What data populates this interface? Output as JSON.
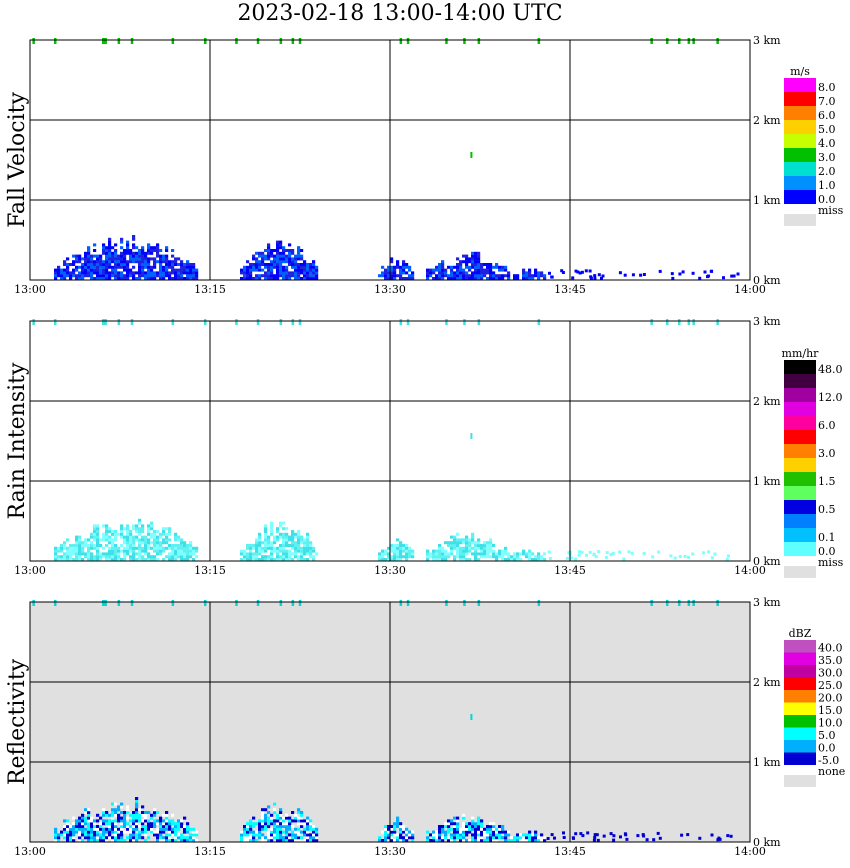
{
  "header": {
    "title": "2023-02-18   13:00-14:00 UTC"
  },
  "chart_data": [
    {
      "type": "heatmap",
      "title": "Fall Velocity",
      "x_ticks": [
        "13:00",
        "13:15",
        "13:30",
        "13:45",
        "14:00"
      ],
      "y_ticks": [
        "0 km",
        "1 km",
        "2 km",
        "3 km"
      ],
      "xlim": [
        0,
        60
      ],
      "ylim_km": [
        0,
        3.1
      ],
      "background": "#ffffff",
      "colorbar": {
        "unit": "m/s",
        "labels": [
          "8.0",
          "7.0",
          "6.0",
          "5.0",
          "4.0",
          "3.0",
          "2.0",
          "1.0",
          "0.0"
        ],
        "colors": [
          "#ff00ff",
          "#ff0000",
          "#ff8000",
          "#ffd000",
          "#c8ff00",
          "#00c000",
          "#00e0d0",
          "#0090ff",
          "#0000ff"
        ],
        "miss_label": "miss",
        "miss_color": "#e0e0e0"
      },
      "echo_colors": [
        "#0000ff",
        "#2020e0",
        "#0060ff"
      ],
      "top_colors": [
        "#00c000",
        "#40d040"
      ]
    },
    {
      "type": "heatmap",
      "title": "Rain Intensity",
      "x_ticks": [
        "13:00",
        "13:15",
        "13:30",
        "13:45",
        "14:00"
      ],
      "y_ticks": [
        "0 km",
        "1 km",
        "2 km",
        "3 km"
      ],
      "xlim": [
        0,
        60
      ],
      "ylim_km": [
        0,
        3.1
      ],
      "background": "#ffffff",
      "colorbar": {
        "unit": "mm/hr",
        "labels": [
          "48.0",
          "12.0",
          "6.0",
          "3.0",
          "1.5",
          "0.5",
          "0.1",
          "0.0"
        ],
        "label_positions": [
          0,
          2,
          4,
          6,
          8,
          10,
          12,
          13
        ],
        "colors": [
          "#000000",
          "#400040",
          "#a000a0",
          "#e000e0",
          "#ff00a0",
          "#ff0000",
          "#ff8000",
          "#ffd000",
          "#20c000",
          "#60ff60",
          "#0000e0",
          "#0080ff",
          "#00c0ff",
          "#60ffff"
        ],
        "miss_label": "miss",
        "miss_color": "#e0e0e0"
      },
      "echo_colors": [
        "#7fffff",
        "#60f0f0",
        "#40e0e8"
      ],
      "top_colors": [
        "#40e0e0",
        "#60f0f0"
      ]
    },
    {
      "type": "heatmap",
      "title": "Reflectivity",
      "x_ticks": [
        "13:00",
        "13:15",
        "13:30",
        "13:45",
        "14:00"
      ],
      "y_ticks": [
        "0 km",
        "1 km",
        "2 km",
        "3 km"
      ],
      "xlim": [
        0,
        60
      ],
      "ylim_km": [
        0,
        3.1
      ],
      "background": "#e0e0e0",
      "colorbar": {
        "unit": "dBZ",
        "labels": [
          "40.0",
          "35.0",
          "30.0",
          "25.0",
          "20.0",
          "15.0",
          "10.0",
          "5.0",
          "0.0",
          "-5.0"
        ],
        "colors": [
          "#c050c0",
          "#e000e0",
          "#c000a0",
          "#ff0000",
          "#ff8000",
          "#ffff00",
          "#00c000",
          "#00ffff",
          "#00b0ff",
          "#0000d0"
        ],
        "miss_label": "none",
        "miss_color": "#e0e0e0"
      },
      "echo_colors": [
        "#0000d0",
        "#ffffff",
        "#00b0ff",
        "#00ffff"
      ],
      "top_colors": [
        "#00d8d8",
        "#40e0e0"
      ]
    }
  ]
}
